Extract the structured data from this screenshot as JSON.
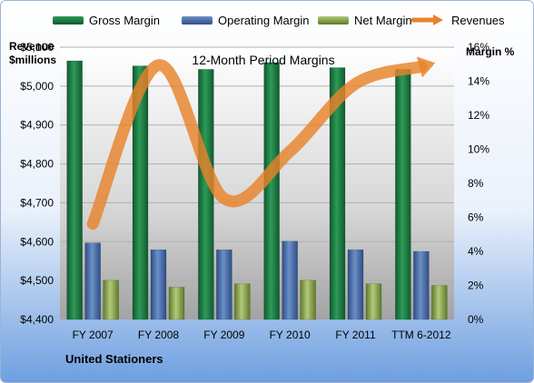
{
  "chart_data": {
    "type": "bar",
    "title": "12-Month Period Margins",
    "subtitle": "United Stationers",
    "ylabel_left": "Revenue $millions",
    "ylabel_right": "Margin %",
    "categories": [
      "FY 2007",
      "FY 2008",
      "FY 2009",
      "FY 2010",
      "FY 2011",
      "TTM 6-2012"
    ],
    "left_axis": {
      "ylim": [
        4400,
        5100
      ],
      "ticks": [
        "$4,400",
        "$4,500",
        "$4,600",
        "$4,700",
        "$4,800",
        "$4,900",
        "$5,000",
        "$5,100"
      ]
    },
    "right_axis": {
      "ylim": [
        0,
        16
      ],
      "ticks": [
        "0%",
        "2%",
        "4%",
        "6%",
        "8%",
        "10%",
        "12%",
        "14%",
        "16%"
      ]
    },
    "series": [
      {
        "name": "Gross Margin",
        "type": "bar",
        "axis": "right",
        "color": "#1E7A45",
        "values": [
          15.2,
          14.9,
          14.7,
          15.1,
          14.8,
          14.7
        ]
      },
      {
        "name": "Operating Margin",
        "type": "bar",
        "axis": "right",
        "color": "#4A6FA8",
        "values": [
          4.5,
          4.1,
          4.1,
          4.6,
          4.1,
          4.0
        ]
      },
      {
        "name": "Net Margin",
        "type": "bar",
        "axis": "right",
        "color": "#8FA74C",
        "values": [
          2.3,
          1.9,
          2.1,
          2.3,
          2.1,
          2.0
        ]
      },
      {
        "name": "Revenues",
        "type": "line",
        "axis": "left",
        "color": "#E8822B",
        "values": [
          4646,
          5054,
          4711,
          4832,
          5006,
          5050
        ]
      }
    ],
    "legend": "top",
    "grid": true
  }
}
